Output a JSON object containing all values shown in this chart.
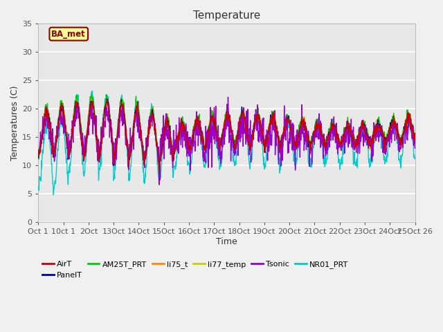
{
  "title": "Temperature",
  "xlabel": "Time",
  "ylabel": "Temperatures (C)",
  "ylim": [
    0,
    35
  ],
  "annotation": "BA_met",
  "series_colors": {
    "AirT": "#cc0000",
    "PanelT": "#000099",
    "AM25T_PRT": "#00cc00",
    "li75_t": "#ff8800",
    "li77_temp": "#cccc00",
    "Tsonic": "#9900cc",
    "NR01_PRT": "#00cccc"
  },
  "background_color": "#f0f0f0",
  "plot_bg_color": "#e8e8e8",
  "xtick_labels": [
    "Oct 1",
    "10ct 1",
    "2Oct",
    "13Oct",
    "14Oct",
    "15Oct",
    "16Oct",
    "17Oct",
    "18Oct",
    "19Oct",
    "20Oct",
    "21Oct",
    "22Oct",
    "23Oct",
    "24Oct",
    "25Oct 26"
  ],
  "yticks": [
    0,
    5,
    10,
    15,
    20,
    25,
    30,
    35
  ],
  "figsize": [
    6.4,
    4.8
  ],
  "dpi": 100
}
